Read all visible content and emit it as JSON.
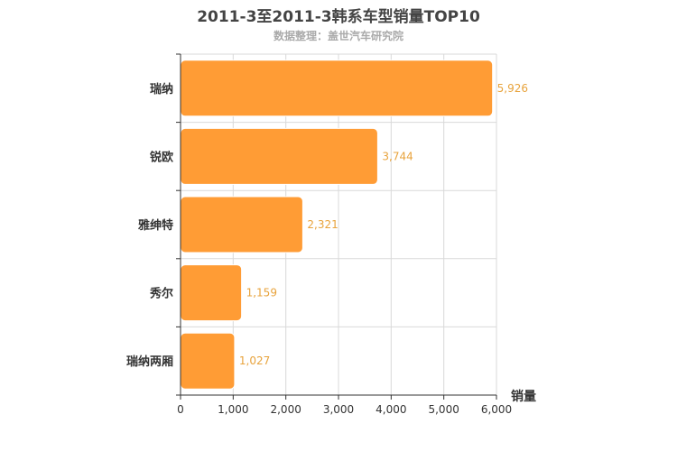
{
  "chart_data": {
    "type": "bar",
    "orientation": "horizontal",
    "title": "2011-3至2011-3韩系车型销量TOP10",
    "subtitle": "数据整理：盖世汽车研究院",
    "categories": [
      "瑞纳",
      "锐欧",
      "雅绅特",
      "秀尔",
      "瑞纳两厢"
    ],
    "values": [
      5926,
      3744,
      2321,
      1159,
      1027
    ],
    "value_labels": [
      "5,926",
      "3,744",
      "2,321",
      "1,159",
      "1,027"
    ],
    "xlabel": "销量",
    "ylabel": "",
    "xlim": [
      0,
      6000
    ],
    "xticks": [
      0,
      1000,
      2000,
      3000,
      4000,
      5000,
      6000
    ],
    "xtick_labels": [
      "0",
      "1,000",
      "2,000",
      "3,000",
      "4,000",
      "5,000",
      "6,000"
    ],
    "grid": true,
    "bar_color": "#ff9c35",
    "label_color": "#e8a33c"
  }
}
